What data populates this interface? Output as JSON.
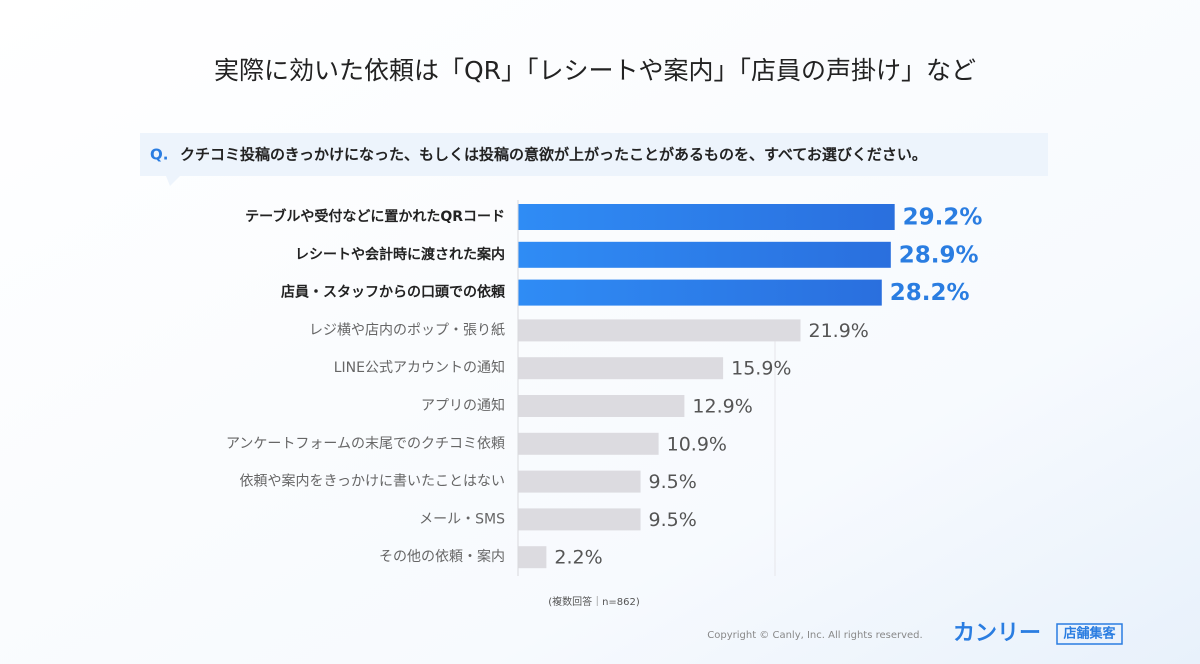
{
  "chart_data": {
    "type": "bar",
    "orientation": "horizontal",
    "title": "実際に効いた依頼は「QR」「レシートや案内」「店員の声掛け」など",
    "question_prefix": "Q.",
    "question": "クチコミ投稿のきっかけになった、もしくは投稿の意欲が上がったことがあるものを、すべてお選びください。",
    "categories": [
      "テーブルや受付などに置かれたQRコード",
      "レシートや会計時に渡された案内",
      "店員・スタッフからの口頭での依頼",
      "レジ横や店内のポップ・張り紙",
      "LINE公式アカウントの通知",
      "アプリの通知",
      "アンケートフォームの末尾でのクチコミ依頼",
      "依頼や案内をきっかけに書いたことはない",
      "メール・SMS",
      "その他の依頼・案内"
    ],
    "values": [
      29.2,
      28.9,
      28.2,
      21.9,
      15.9,
      12.9,
      10.9,
      9.5,
      9.5,
      2.2
    ],
    "value_labels": [
      "29.2%",
      "28.9%",
      "28.2%",
      "21.9%",
      "15.9%",
      "12.9%",
      "10.9%",
      "9.5%",
      "9.5%",
      "2.2%"
    ],
    "colors": [
      "#2f86f0",
      "#2f86f0",
      "#2f86f0",
      "#dcdbe0",
      "#dcdbe0",
      "#dcdbe0",
      "#dcdbe0",
      "#dcdbe0",
      "#dcdbe0",
      "#dcdbe0"
    ],
    "note": "(複数回答｜n=862)"
  },
  "footer": {
    "copyright": "Copyright © Canly, Inc. All rights reserved.",
    "logo": "カンリー",
    "logo_tag": "店舗集客"
  }
}
